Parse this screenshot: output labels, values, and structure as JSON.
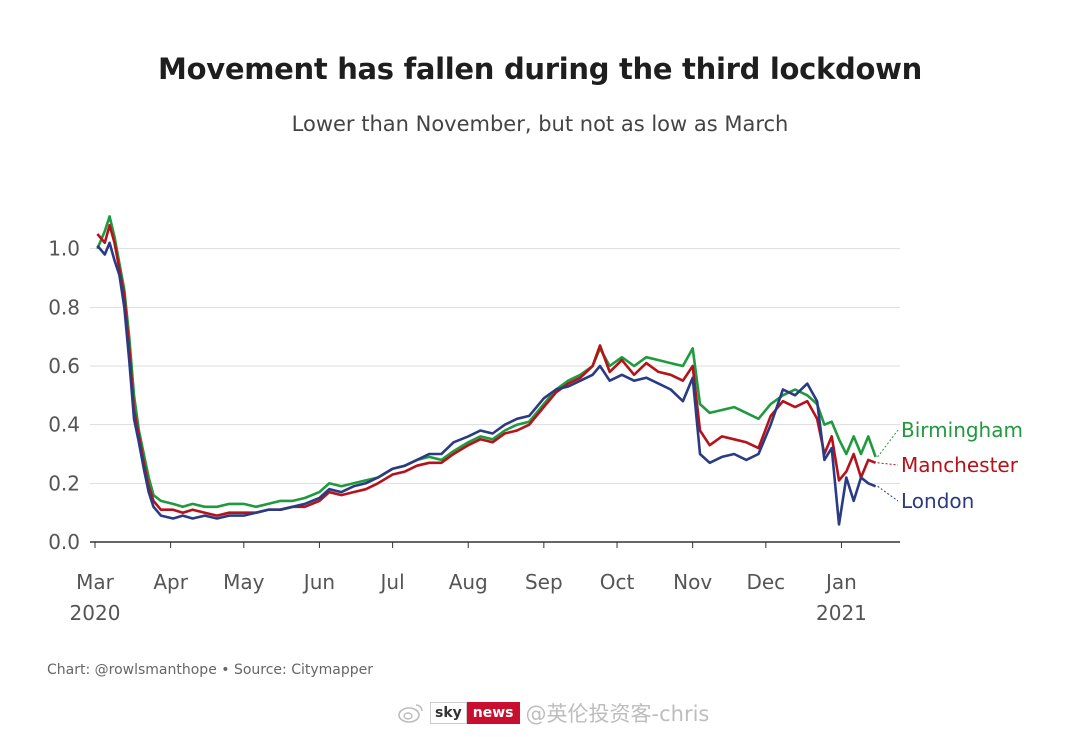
{
  "chart_data": {
    "type": "line",
    "title": "Movement has fallen during the third lockdown",
    "subtitle": "Lower than November, but not as low as March",
    "xlabel": "",
    "ylabel": "",
    "x_range": [
      "2020-03-01",
      "2021-01-25"
    ],
    "ylim": [
      0,
      1.2
    ],
    "y_ticks": [
      0.0,
      0.2,
      0.4,
      0.6,
      0.8,
      1.0
    ],
    "y_tick_labels": [
      "0.0",
      "0.2",
      "0.4",
      "0.6",
      "0.8",
      "1.0"
    ],
    "x_ticks": [
      {
        "date": "2020-03-01",
        "label": "Mar",
        "year": "2020"
      },
      {
        "date": "2020-04-01",
        "label": "Apr",
        "year": ""
      },
      {
        "date": "2020-05-01",
        "label": "May",
        "year": ""
      },
      {
        "date": "2020-06-01",
        "label": "Jun",
        "year": ""
      },
      {
        "date": "2020-07-01",
        "label": "Jul",
        "year": ""
      },
      {
        "date": "2020-08-01",
        "label": "Aug",
        "year": ""
      },
      {
        "date": "2020-09-01",
        "label": "Sep",
        "year": ""
      },
      {
        "date": "2020-10-01",
        "label": "Oct",
        "year": ""
      },
      {
        "date": "2020-11-01",
        "label": "Nov",
        "year": ""
      },
      {
        "date": "2020-12-01",
        "label": "Dec",
        "year": ""
      },
      {
        "date": "2021-01-01",
        "label": "Jan",
        "year": "2021"
      }
    ],
    "grid": "horizontal",
    "legend": "direct labels at right end of lines",
    "series": [
      {
        "name": "Birmingham",
        "color": "#1f9a3e",
        "points": [
          [
            "2020-03-02",
            1.0
          ],
          [
            "2020-03-05",
            1.06
          ],
          [
            "2020-03-07",
            1.11
          ],
          [
            "2020-03-09",
            1.04
          ],
          [
            "2020-03-11",
            0.95
          ],
          [
            "2020-03-13",
            0.86
          ],
          [
            "2020-03-15",
            0.7
          ],
          [
            "2020-03-17",
            0.5
          ],
          [
            "2020-03-19",
            0.38
          ],
          [
            "2020-03-21",
            0.3
          ],
          [
            "2020-03-23",
            0.22
          ],
          [
            "2020-03-25",
            0.16
          ],
          [
            "2020-03-28",
            0.14
          ],
          [
            "2020-04-02",
            0.13
          ],
          [
            "2020-04-06",
            0.12
          ],
          [
            "2020-04-10",
            0.13
          ],
          [
            "2020-04-15",
            0.12
          ],
          [
            "2020-04-20",
            0.12
          ],
          [
            "2020-04-25",
            0.13
          ],
          [
            "2020-05-01",
            0.13
          ],
          [
            "2020-05-06",
            0.12
          ],
          [
            "2020-05-11",
            0.13
          ],
          [
            "2020-05-16",
            0.14
          ],
          [
            "2020-05-21",
            0.14
          ],
          [
            "2020-05-26",
            0.15
          ],
          [
            "2020-06-01",
            0.17
          ],
          [
            "2020-06-05",
            0.2
          ],
          [
            "2020-06-10",
            0.19
          ],
          [
            "2020-06-15",
            0.2
          ],
          [
            "2020-06-20",
            0.21
          ],
          [
            "2020-06-25",
            0.22
          ],
          [
            "2020-07-01",
            0.25
          ],
          [
            "2020-07-06",
            0.26
          ],
          [
            "2020-07-11",
            0.28
          ],
          [
            "2020-07-16",
            0.29
          ],
          [
            "2020-07-21",
            0.28
          ],
          [
            "2020-07-26",
            0.31
          ],
          [
            "2020-08-01",
            0.34
          ],
          [
            "2020-08-06",
            0.36
          ],
          [
            "2020-08-11",
            0.35
          ],
          [
            "2020-08-16",
            0.38
          ],
          [
            "2020-08-21",
            0.4
          ],
          [
            "2020-08-26",
            0.41
          ],
          [
            "2020-09-01",
            0.47
          ],
          [
            "2020-09-06",
            0.52
          ],
          [
            "2020-09-11",
            0.55
          ],
          [
            "2020-09-16",
            0.57
          ],
          [
            "2020-09-21",
            0.6
          ],
          [
            "2020-09-24",
            0.66
          ],
          [
            "2020-09-28",
            0.6
          ],
          [
            "2020-10-03",
            0.63
          ],
          [
            "2020-10-08",
            0.6
          ],
          [
            "2020-10-13",
            0.63
          ],
          [
            "2020-10-18",
            0.62
          ],
          [
            "2020-10-23",
            0.61
          ],
          [
            "2020-10-28",
            0.6
          ],
          [
            "2020-11-01",
            0.66
          ],
          [
            "2020-11-04",
            0.47
          ],
          [
            "2020-11-08",
            0.44
          ],
          [
            "2020-11-13",
            0.45
          ],
          [
            "2020-11-18",
            0.46
          ],
          [
            "2020-11-23",
            0.44
          ],
          [
            "2020-11-28",
            0.42
          ],
          [
            "2020-12-03",
            0.47
          ],
          [
            "2020-12-08",
            0.5
          ],
          [
            "2020-12-13",
            0.52
          ],
          [
            "2020-12-18",
            0.5
          ],
          [
            "2020-12-22",
            0.47
          ],
          [
            "2020-12-25",
            0.4
          ],
          [
            "2020-12-28",
            0.41
          ],
          [
            "2020-12-31",
            0.35
          ],
          [
            "2021-01-03",
            0.3
          ],
          [
            "2021-01-06",
            0.36
          ],
          [
            "2021-01-09",
            0.3
          ],
          [
            "2021-01-12",
            0.36
          ],
          [
            "2021-01-15",
            0.29
          ]
        ]
      },
      {
        "name": "Manchester",
        "color": "#b5121b",
        "points": [
          [
            "2020-03-02",
            1.05
          ],
          [
            "2020-03-05",
            1.02
          ],
          [
            "2020-03-07",
            1.08
          ],
          [
            "2020-03-09",
            1.02
          ],
          [
            "2020-03-11",
            0.93
          ],
          [
            "2020-03-13",
            0.84
          ],
          [
            "2020-03-15",
            0.66
          ],
          [
            "2020-03-17",
            0.45
          ],
          [
            "2020-03-19",
            0.36
          ],
          [
            "2020-03-21",
            0.27
          ],
          [
            "2020-03-23",
            0.19
          ],
          [
            "2020-03-25",
            0.14
          ],
          [
            "2020-03-28",
            0.11
          ],
          [
            "2020-04-02",
            0.11
          ],
          [
            "2020-04-06",
            0.1
          ],
          [
            "2020-04-10",
            0.11
          ],
          [
            "2020-04-15",
            0.1
          ],
          [
            "2020-04-20",
            0.09
          ],
          [
            "2020-04-25",
            0.1
          ],
          [
            "2020-05-01",
            0.1
          ],
          [
            "2020-05-06",
            0.1
          ],
          [
            "2020-05-11",
            0.11
          ],
          [
            "2020-05-16",
            0.11
          ],
          [
            "2020-05-21",
            0.12
          ],
          [
            "2020-05-26",
            0.12
          ],
          [
            "2020-06-01",
            0.14
          ],
          [
            "2020-06-05",
            0.17
          ],
          [
            "2020-06-10",
            0.16
          ],
          [
            "2020-06-15",
            0.17
          ],
          [
            "2020-06-20",
            0.18
          ],
          [
            "2020-06-25",
            0.2
          ],
          [
            "2020-07-01",
            0.23
          ],
          [
            "2020-07-06",
            0.24
          ],
          [
            "2020-07-11",
            0.26
          ],
          [
            "2020-07-16",
            0.27
          ],
          [
            "2020-07-21",
            0.27
          ],
          [
            "2020-07-26",
            0.3
          ],
          [
            "2020-08-01",
            0.33
          ],
          [
            "2020-08-06",
            0.35
          ],
          [
            "2020-08-11",
            0.34
          ],
          [
            "2020-08-16",
            0.37
          ],
          [
            "2020-08-21",
            0.38
          ],
          [
            "2020-08-26",
            0.4
          ],
          [
            "2020-09-01",
            0.46
          ],
          [
            "2020-09-06",
            0.51
          ],
          [
            "2020-09-11",
            0.54
          ],
          [
            "2020-09-16",
            0.56
          ],
          [
            "2020-09-21",
            0.6
          ],
          [
            "2020-09-24",
            0.67
          ],
          [
            "2020-09-28",
            0.58
          ],
          [
            "2020-10-03",
            0.62
          ],
          [
            "2020-10-08",
            0.57
          ],
          [
            "2020-10-13",
            0.61
          ],
          [
            "2020-10-18",
            0.58
          ],
          [
            "2020-10-23",
            0.57
          ],
          [
            "2020-10-28",
            0.55
          ],
          [
            "2020-11-01",
            0.6
          ],
          [
            "2020-11-04",
            0.38
          ],
          [
            "2020-11-08",
            0.33
          ],
          [
            "2020-11-13",
            0.36
          ],
          [
            "2020-11-18",
            0.35
          ],
          [
            "2020-11-23",
            0.34
          ],
          [
            "2020-11-28",
            0.32
          ],
          [
            "2020-12-03",
            0.43
          ],
          [
            "2020-12-08",
            0.48
          ],
          [
            "2020-12-13",
            0.46
          ],
          [
            "2020-12-18",
            0.48
          ],
          [
            "2020-12-22",
            0.42
          ],
          [
            "2020-12-25",
            0.3
          ],
          [
            "2020-12-28",
            0.36
          ],
          [
            "2020-12-31",
            0.21
          ],
          [
            "2021-01-03",
            0.24
          ],
          [
            "2021-01-06",
            0.3
          ],
          [
            "2021-01-09",
            0.22
          ],
          [
            "2021-01-12",
            0.28
          ],
          [
            "2021-01-15",
            0.27
          ]
        ]
      },
      {
        "name": "London",
        "color": "#2a3b84",
        "points": [
          [
            "2020-03-02",
            1.01
          ],
          [
            "2020-03-05",
            0.98
          ],
          [
            "2020-03-07",
            1.02
          ],
          [
            "2020-03-09",
            0.96
          ],
          [
            "2020-03-11",
            0.91
          ],
          [
            "2020-03-13",
            0.8
          ],
          [
            "2020-03-15",
            0.62
          ],
          [
            "2020-03-17",
            0.42
          ],
          [
            "2020-03-19",
            0.34
          ],
          [
            "2020-03-21",
            0.25
          ],
          [
            "2020-03-23",
            0.17
          ],
          [
            "2020-03-25",
            0.12
          ],
          [
            "2020-03-28",
            0.09
          ],
          [
            "2020-04-02",
            0.08
          ],
          [
            "2020-04-06",
            0.09
          ],
          [
            "2020-04-10",
            0.08
          ],
          [
            "2020-04-15",
            0.09
          ],
          [
            "2020-04-20",
            0.08
          ],
          [
            "2020-04-25",
            0.09
          ],
          [
            "2020-05-01",
            0.09
          ],
          [
            "2020-05-06",
            0.1
          ],
          [
            "2020-05-11",
            0.11
          ],
          [
            "2020-05-16",
            0.11
          ],
          [
            "2020-05-21",
            0.12
          ],
          [
            "2020-05-26",
            0.13
          ],
          [
            "2020-06-01",
            0.15
          ],
          [
            "2020-06-05",
            0.18
          ],
          [
            "2020-06-10",
            0.17
          ],
          [
            "2020-06-15",
            0.19
          ],
          [
            "2020-06-20",
            0.2
          ],
          [
            "2020-06-25",
            0.22
          ],
          [
            "2020-07-01",
            0.25
          ],
          [
            "2020-07-06",
            0.26
          ],
          [
            "2020-07-11",
            0.28
          ],
          [
            "2020-07-16",
            0.3
          ],
          [
            "2020-07-21",
            0.3
          ],
          [
            "2020-07-26",
            0.34
          ],
          [
            "2020-08-01",
            0.36
          ],
          [
            "2020-08-06",
            0.38
          ],
          [
            "2020-08-11",
            0.37
          ],
          [
            "2020-08-16",
            0.4
          ],
          [
            "2020-08-21",
            0.42
          ],
          [
            "2020-08-26",
            0.43
          ],
          [
            "2020-09-01",
            0.49
          ],
          [
            "2020-09-06",
            0.52
          ],
          [
            "2020-09-11",
            0.53
          ],
          [
            "2020-09-16",
            0.55
          ],
          [
            "2020-09-21",
            0.57
          ],
          [
            "2020-09-24",
            0.6
          ],
          [
            "2020-09-28",
            0.55
          ],
          [
            "2020-10-03",
            0.57
          ],
          [
            "2020-10-08",
            0.55
          ],
          [
            "2020-10-13",
            0.56
          ],
          [
            "2020-10-18",
            0.54
          ],
          [
            "2020-10-23",
            0.52
          ],
          [
            "2020-10-28",
            0.48
          ],
          [
            "2020-11-01",
            0.56
          ],
          [
            "2020-11-04",
            0.3
          ],
          [
            "2020-11-08",
            0.27
          ],
          [
            "2020-11-13",
            0.29
          ],
          [
            "2020-11-18",
            0.3
          ],
          [
            "2020-11-23",
            0.28
          ],
          [
            "2020-11-28",
            0.3
          ],
          [
            "2020-12-03",
            0.4
          ],
          [
            "2020-12-08",
            0.52
          ],
          [
            "2020-12-13",
            0.5
          ],
          [
            "2020-12-18",
            0.54
          ],
          [
            "2020-12-22",
            0.48
          ],
          [
            "2020-12-25",
            0.28
          ],
          [
            "2020-12-28",
            0.32
          ],
          [
            "2020-12-31",
            0.06
          ],
          [
            "2021-01-03",
            0.22
          ],
          [
            "2021-01-06",
            0.14
          ],
          [
            "2021-01-09",
            0.22
          ],
          [
            "2021-01-12",
            0.2
          ],
          [
            "2021-01-15",
            0.19
          ]
        ]
      }
    ]
  },
  "footer": {
    "source": "Chart: @rowlsmanthope • Source: Citymapper"
  },
  "watermark": {
    "icon": "weibo-icon",
    "logo_left": "sky",
    "logo_right": "news",
    "text": "@英伦投资客-chris"
  }
}
